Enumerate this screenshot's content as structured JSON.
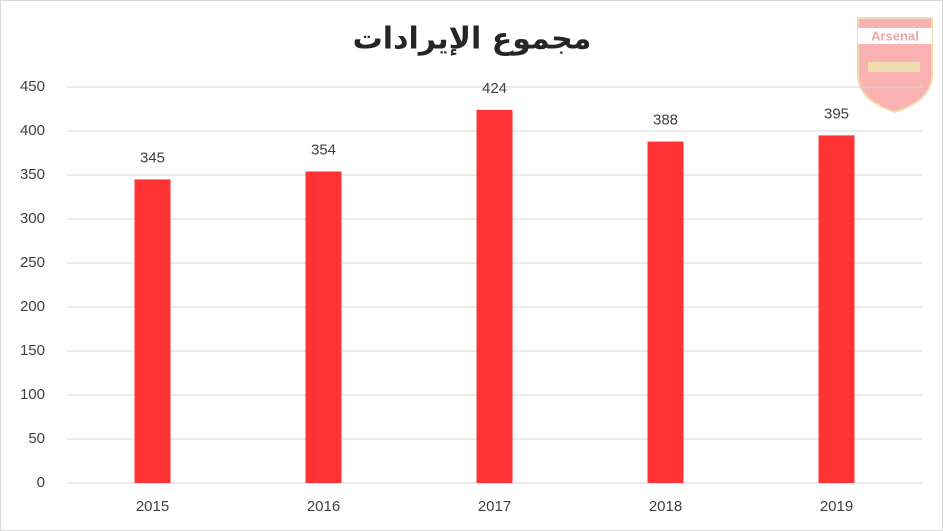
{
  "chart_data": {
    "type": "bar",
    "title": "مجموع الإيرادات",
    "logo_text": "Arsenal",
    "categories": [
      "2015",
      "2016",
      "2017",
      "2018",
      "2019"
    ],
    "values": [
      345,
      354,
      424,
      388,
      395
    ],
    "color": "#ff3333",
    "ylim": [
      0,
      450
    ],
    "yticks": [
      0,
      50,
      100,
      150,
      200,
      250,
      300,
      350,
      400,
      450
    ],
    "grid": true,
    "data_labels": true
  }
}
